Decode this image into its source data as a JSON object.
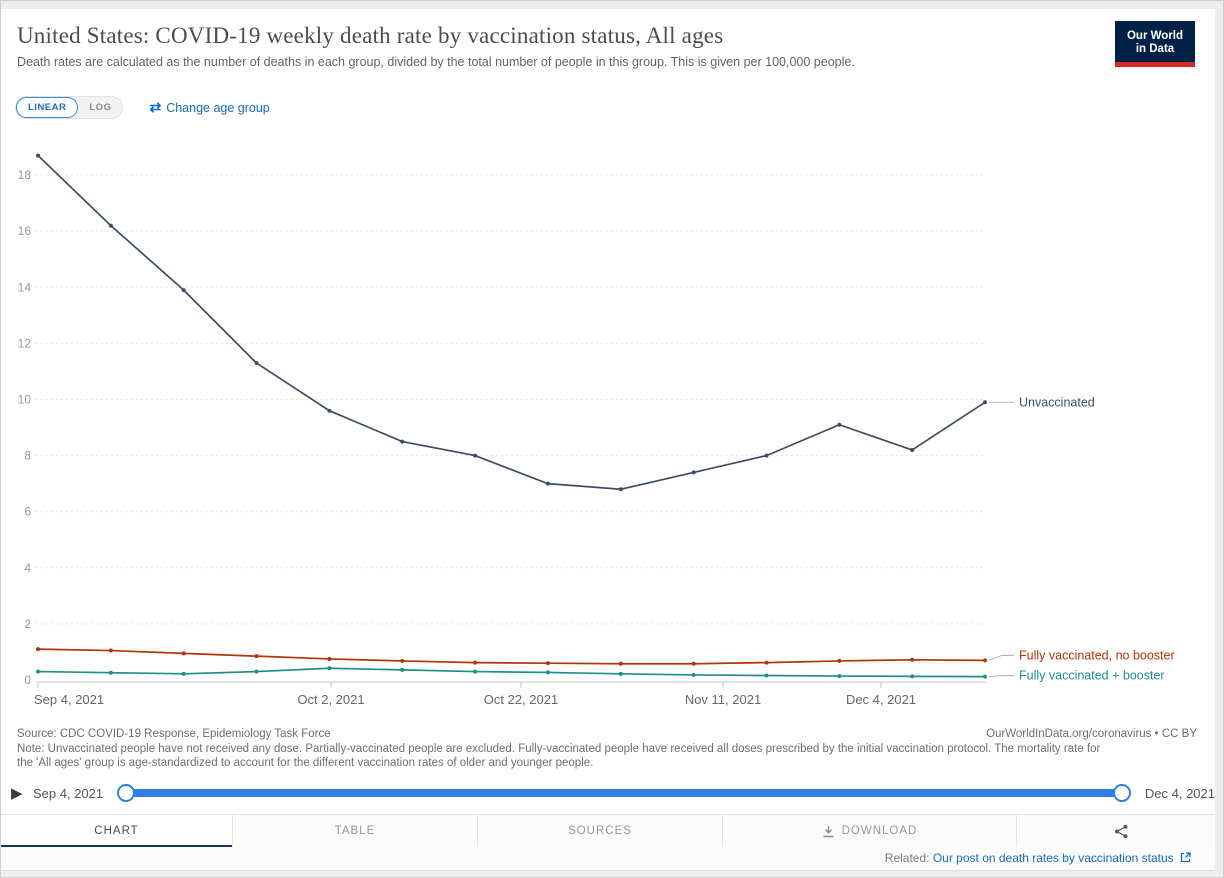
{
  "header": {
    "title": "United States: COVID-19 weekly death rate by vaccination status, All ages",
    "subtitle": "Death rates are calculated as the number of deaths in each group, divided by the total number of people in this group. This is given per 100,000 people.",
    "logo_line1": "Our World",
    "logo_line2": "in Data"
  },
  "controls": {
    "linear_label": "LINEAR",
    "log_label": "LOG",
    "swap_icon": "⇄",
    "change_age_group_label": "Change age group"
  },
  "chart_data": {
    "type": "line",
    "title": "United States: COVID-19 weekly death rate by vaccination status, All ages",
    "ylabel": "",
    "xlabel": "",
    "ylim": [
      0,
      19
    ],
    "ytick_step": 2,
    "grid": "horizontal-dotted",
    "legend": "right-edge-labels",
    "x": [
      "Sep 4, 2021",
      "Sep 11, 2021",
      "Sep 18, 2021",
      "Sep 25, 2021",
      "Oct 2, 2021",
      "Oct 9, 2021",
      "Oct 16, 2021",
      "Oct 23, 2021",
      "Oct 30, 2021",
      "Nov 6, 2021",
      "Nov 13, 2021",
      "Nov 20, 2021",
      "Nov 27, 2021",
      "Dec 4, 2021"
    ],
    "x_tick_labels": [
      "Sep 4, 2021",
      "Oct 2, 2021",
      "Oct 22, 2021",
      "Nov 11, 2021",
      "Dec 4, 2021"
    ],
    "series": [
      {
        "name": "Unvaccinated",
        "color": "#3c4e66",
        "values": [
          18.7,
          16.2,
          13.9,
          11.3,
          9.6,
          8.5,
          8.0,
          7.0,
          6.8,
          7.4,
          8.0,
          9.1,
          8.2,
          9.9
        ]
      },
      {
        "name": "Fully vaccinated, no booster",
        "color": "#b13507",
        "values": [
          1.1,
          1.05,
          0.95,
          0.85,
          0.75,
          0.68,
          0.62,
          0.6,
          0.58,
          0.58,
          0.62,
          0.68,
          0.72,
          0.7
        ]
      },
      {
        "name": "Fully vaccinated + booster",
        "color": "#1f8f85",
        "values": [
          0.3,
          0.26,
          0.22,
          0.3,
          0.42,
          0.36,
          0.3,
          0.27,
          0.22,
          0.18,
          0.16,
          0.14,
          0.13,
          0.12
        ]
      }
    ]
  },
  "footer": {
    "source": "Source: CDC COVID-19 Response, Epidemiology Task Force",
    "attribution": "OurWorldInData.org/coronavirus • CC BY",
    "note": "Note: Unvaccinated people have not received any dose. Partially-vaccinated people are excluded. Fully-vaccinated people have received all doses prescribed by the initial vaccination protocol. The mortality rate for the 'All ages' group is age-standardized to account for the different vaccination rates of older and younger people."
  },
  "timeline": {
    "start_label": "Sep 4, 2021",
    "end_label": "Dec 4, 2021"
  },
  "tabs": [
    {
      "label": "CHART"
    },
    {
      "label": "TABLE"
    },
    {
      "label": "SOURCES"
    },
    {
      "label": "DOWNLOAD"
    },
    {
      "label": ""
    }
  ],
  "related": {
    "prefix": "Related:",
    "link_text": "Our post on death rates by vaccination status"
  },
  "colors": {
    "accent_blue": "#1569c7",
    "slider_blue": "#2e7fe3",
    "tab_underline": "#16335b",
    "logo_navy": "#002147",
    "logo_red": "#d4292b"
  }
}
